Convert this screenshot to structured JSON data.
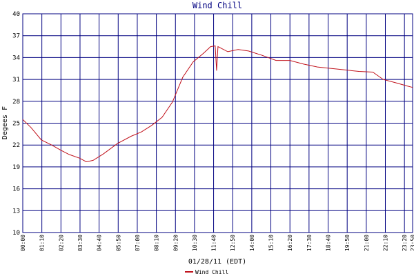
{
  "chart_data": {
    "type": "line",
    "title": "Wind Chill",
    "y_label": "Degees F",
    "x_label": "01/28/11 (EDT)",
    "x": [
      0,
      30,
      68,
      106,
      139,
      170,
      208,
      233,
      258,
      296,
      347,
      397,
      435,
      473,
      511,
      549,
      587,
      625,
      663,
      689,
      706,
      711,
      716,
      752,
      790,
      828,
      878,
      929,
      980,
      1030,
      1081,
      1157,
      1233,
      1284,
      1322,
      1372,
      1410,
      1430
    ],
    "series": [
      {
        "name": "Wind Chill",
        "color": "#c0101a",
        "values": [
          25.5,
          24.4,
          22.7,
          22.0,
          21.3,
          20.7,
          20.2,
          19.7,
          19.9,
          20.8,
          22.2,
          23.2,
          23.8,
          24.7,
          25.8,
          27.9,
          31.3,
          33.4,
          34.6,
          35.5,
          35.6,
          32.2,
          35.5,
          34.8,
          35.1,
          34.9,
          34.3,
          33.6,
          33.6,
          33.1,
          32.7,
          32.4,
          32.1,
          32.0,
          31.0,
          30.5,
          30.1,
          29.9
        ]
      }
    ],
    "xlim": [
      0,
      1430
    ],
    "xticks": [
      {
        "value": 0,
        "label": "00:00"
      },
      {
        "value": 70,
        "label": "01:10"
      },
      {
        "value": 140,
        "label": "02:20"
      },
      {
        "value": 210,
        "label": "03:30"
      },
      {
        "value": 280,
        "label": "04:40"
      },
      {
        "value": 350,
        "label": "05:50"
      },
      {
        "value": 420,
        "label": "07:00"
      },
      {
        "value": 490,
        "label": "08:10"
      },
      {
        "value": 560,
        "label": "09:20"
      },
      {
        "value": 630,
        "label": "10:30"
      },
      {
        "value": 700,
        "label": "11:40"
      },
      {
        "value": 770,
        "label": "12:50"
      },
      {
        "value": 840,
        "label": "14:00"
      },
      {
        "value": 910,
        "label": "15:10"
      },
      {
        "value": 980,
        "label": "16:20"
      },
      {
        "value": 1050,
        "label": "17:30"
      },
      {
        "value": 1120,
        "label": "18:40"
      },
      {
        "value": 1190,
        "label": "19:50"
      },
      {
        "value": 1260,
        "label": "21:00"
      },
      {
        "value": 1330,
        "label": "22:10"
      },
      {
        "value": 1400,
        "label": "23:20"
      },
      {
        "value": 1430,
        "label": "23:50"
      }
    ],
    "ylim": [
      10,
      40
    ],
    "yticks": [
      10,
      13,
      16,
      19,
      22,
      25,
      28,
      31,
      34,
      37,
      40
    ],
    "grid": true,
    "grid_color": "#000080"
  }
}
